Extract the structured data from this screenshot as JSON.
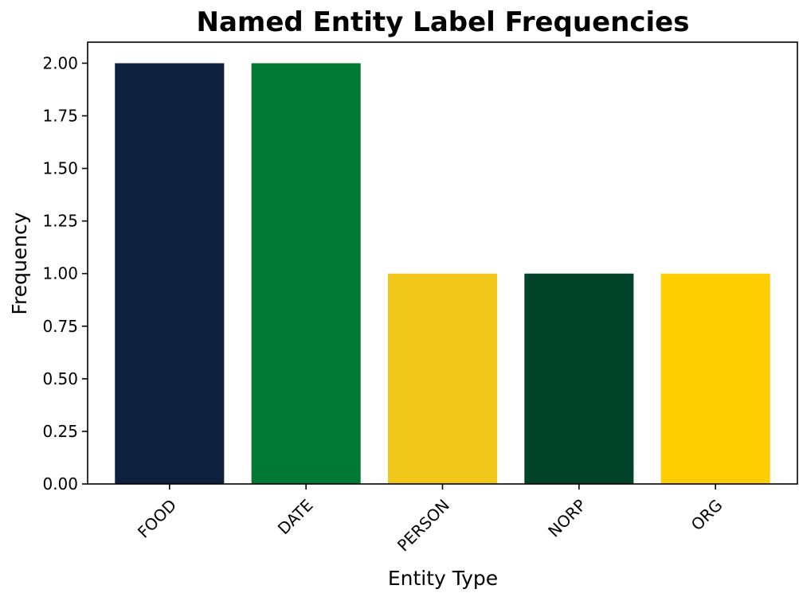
{
  "chart_data": {
    "type": "bar",
    "title": "Named Entity Label Frequencies",
    "xlabel": "Entity Type",
    "ylabel": "Frequency",
    "categories": [
      "FOOD",
      "DATE",
      "PERSON",
      "NORP",
      "ORG"
    ],
    "values": [
      2,
      2,
      1,
      1,
      1
    ],
    "colors": [
      "#0e2240",
      "#007934",
      "#f1c61a",
      "#01432a",
      "#ffcd00"
    ],
    "ylim": [
      0,
      2.1
    ],
    "yticks": [
      0,
      0.25,
      0.5,
      0.75,
      1.0,
      1.25,
      1.5,
      1.75,
      2.0
    ],
    "ytick_labels": [
      "0.00",
      "0.25",
      "0.50",
      "0.75",
      "1.00",
      "1.25",
      "1.50",
      "1.75",
      "2.00"
    ],
    "grid": false,
    "legend": "none",
    "xtick_rotation_deg": -45
  }
}
